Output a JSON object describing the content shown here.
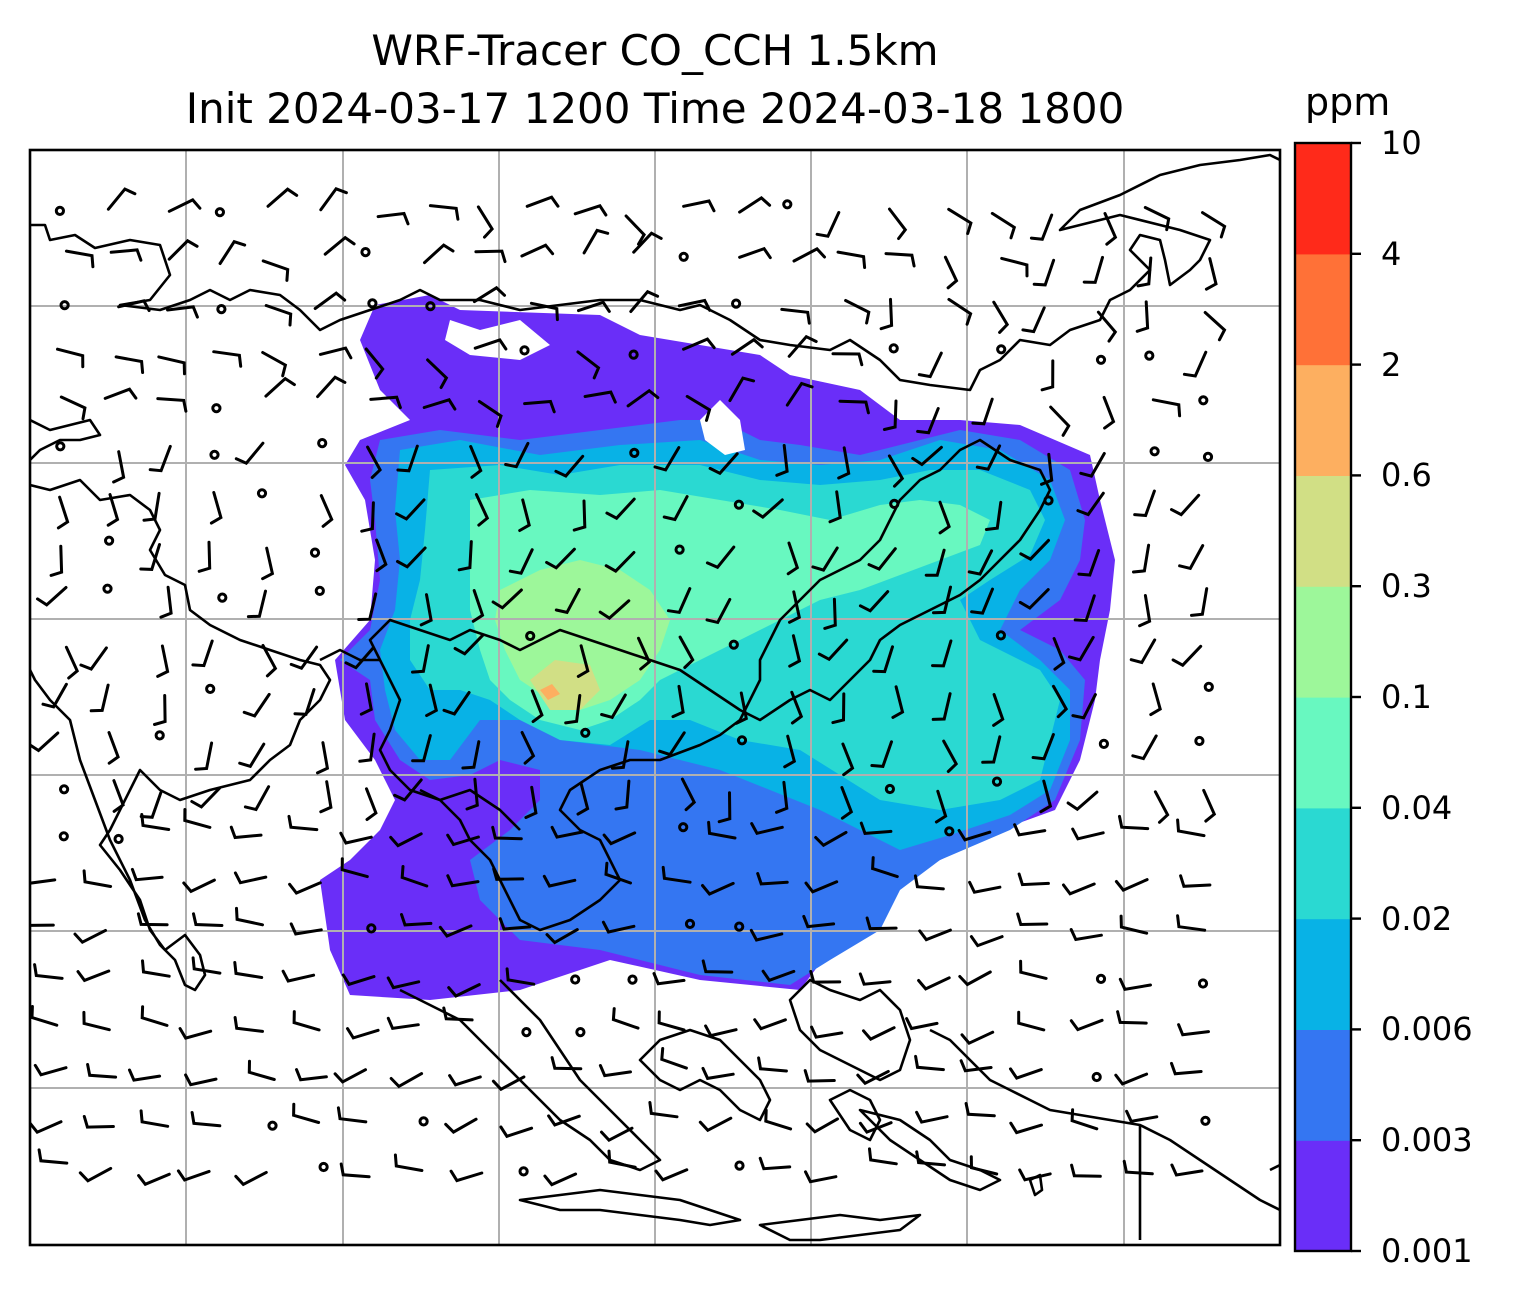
{
  "title": {
    "line1": "WRF-Tracer CO_CCH 1.5km",
    "line2": "Init 2024-03-17 1200 Time 2024-03-18 1800"
  },
  "colorbar": {
    "unit": "ppm",
    "levels": [
      "0.001",
      "0.003",
      "0.006",
      "0.02",
      "0.04",
      "0.1",
      "0.3",
      "0.6",
      "2",
      "4",
      "10"
    ],
    "colors": [
      "#6a2ef8",
      "#3476f2",
      "#08b2e6",
      "#2ad9d2",
      "#68f8c0",
      "#9df79a",
      "#d1df85",
      "#fdaf60",
      "#ff7137",
      "#ff2a1a"
    ]
  },
  "map": {
    "grid": "on",
    "line_color": "#000000",
    "grid_color": "#b0b0b0",
    "overlay": "wind barbs"
  }
}
